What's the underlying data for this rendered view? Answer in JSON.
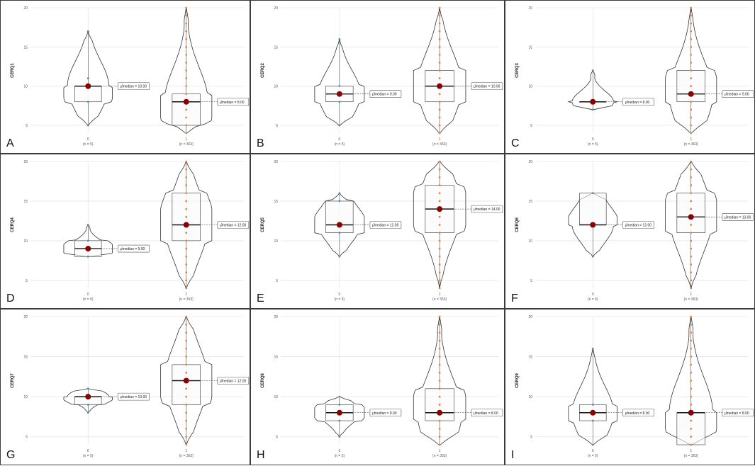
{
  "colors": {
    "mean_point": "#8b0000",
    "data_point": "#e8803a",
    "outline": "#333333",
    "grid": "#e6e6e6",
    "label_border": "#555555"
  },
  "chart_data": [
    {
      "panel": "A",
      "type": "violin",
      "ylabel": "CERQ1",
      "ylim": [
        4,
        20
      ],
      "yticks": [
        5,
        10,
        15,
        20
      ],
      "groups": [
        {
          "tick": "0",
          "n_label": "(n = 5)",
          "min": 5,
          "q1": 8,
          "median": 10,
          "q3": 10,
          "max": 17,
          "mean": 10,
          "label": "μ̂median = 10.00",
          "points": [
            5,
            8,
            10,
            11,
            17
          ]
        },
        {
          "tick": "1",
          "n_label": "(n = 363)",
          "min": 4,
          "q1": 5,
          "median": 8,
          "q3": 9,
          "max": 20,
          "mean": 8,
          "label": "μ̂median = 8.00",
          "points": [
            4,
            5,
            6,
            7,
            8,
            9,
            10,
            11,
            12,
            13,
            14,
            15,
            16,
            17,
            18,
            19,
            20
          ]
        }
      ]
    },
    {
      "panel": "B",
      "type": "violin",
      "ylabel": "CERQ2",
      "ylim": [
        4,
        20
      ],
      "yticks": [
        5,
        10,
        15,
        20
      ],
      "groups": [
        {
          "tick": "0",
          "n_label": "(n = 5)",
          "min": 5,
          "q1": 8,
          "median": 9,
          "q3": 10,
          "max": 16,
          "mean": 9,
          "label": "μ̂median = 9.00",
          "points": [
            5,
            8,
            9,
            10,
            16
          ]
        },
        {
          "tick": "1",
          "n_label": "(n = 363)",
          "min": 4,
          "q1": 8,
          "median": 10,
          "q3": 12,
          "max": 20,
          "mean": 10,
          "label": "μ̂median = 10.00",
          "points": [
            4,
            5,
            6,
            7,
            8,
            9,
            10,
            11,
            12,
            13,
            14,
            15,
            16,
            17,
            18,
            19,
            20
          ]
        }
      ]
    },
    {
      "panel": "C",
      "type": "violin",
      "ylabel": "CERQ3",
      "ylim": [
        4,
        20
      ],
      "yticks": [
        5,
        10,
        15,
        20
      ],
      "groups": [
        {
          "tick": "0",
          "n_label": "(n = 5)",
          "min": 7,
          "q1": 8,
          "median": 8,
          "q3": 8,
          "max": 12,
          "mean": 8,
          "label": "μ̂median = 8.00",
          "points": [
            7,
            8,
            8,
            8,
            12
          ]
        },
        {
          "tick": "1",
          "n_label": "(n = 363)",
          "min": 4,
          "q1": 8,
          "median": 9,
          "q3": 12,
          "max": 20,
          "mean": 9,
          "label": "μ̂median = 9.00",
          "points": [
            4,
            5,
            6,
            7,
            8,
            9,
            10,
            11,
            12,
            13,
            14,
            15,
            16,
            17,
            18,
            19,
            20
          ]
        }
      ]
    },
    {
      "panel": "D",
      "type": "violin",
      "ylabel": "CERQ4",
      "ylim": [
        4,
        20
      ],
      "yticks": [
        5,
        10,
        15,
        20
      ],
      "groups": [
        {
          "tick": "0",
          "n_label": "(n = 5)",
          "min": 8,
          "q1": 8,
          "median": 9,
          "q3": 10,
          "max": 12,
          "mean": 9,
          "label": "μ̂median = 9.00",
          "points": [
            8,
            8,
            9,
            10,
            12
          ]
        },
        {
          "tick": "1",
          "n_label": "(n = 363)",
          "min": 4,
          "q1": 10,
          "median": 12,
          "q3": 16,
          "max": 20,
          "mean": 12,
          "label": "μ̂median = 12.00",
          "points": [
            4,
            5,
            6,
            7,
            8,
            9,
            10,
            11,
            12,
            13,
            14,
            15,
            16,
            17,
            18,
            19,
            20
          ]
        }
      ]
    },
    {
      "panel": "E",
      "type": "violin",
      "ylabel": "CERQ5",
      "ylim": [
        4,
        20
      ],
      "yticks": [
        5,
        10,
        15,
        20
      ],
      "groups": [
        {
          "tick": "0",
          "n_label": "(n = 5)",
          "min": 8,
          "q1": 11,
          "median": 12,
          "q3": 15,
          "max": 16,
          "mean": 12,
          "label": "μ̂median = 12.00",
          "points": [
            8,
            11,
            12,
            15,
            16
          ]
        },
        {
          "tick": "1",
          "n_label": "(n = 363)",
          "min": 4,
          "q1": 11,
          "median": 14,
          "q3": 17,
          "max": 20,
          "mean": 14,
          "label": "μ̂median = 14.00",
          "points": [
            4,
            5,
            6,
            7,
            8,
            9,
            10,
            11,
            12,
            13,
            14,
            15,
            16,
            17,
            18,
            19,
            20
          ]
        }
      ]
    },
    {
      "panel": "F",
      "type": "violin",
      "ylabel": "CERQ6",
      "ylim": [
        4,
        20
      ],
      "yticks": [
        5,
        10,
        15,
        20
      ],
      "groups": [
        {
          "tick": "0",
          "n_label": "(n = 5)",
          "min": 8,
          "q1": 12,
          "median": 12,
          "q3": 16,
          "max": 16,
          "mean": 12,
          "label": "μ̂median = 12.00",
          "points": [
            8,
            12,
            12,
            16,
            16
          ]
        },
        {
          "tick": "1",
          "n_label": "(n = 363)",
          "min": 4,
          "q1": 11,
          "median": 13,
          "q3": 16,
          "max": 20,
          "mean": 13,
          "label": "μ̂median = 13.00",
          "points": [
            4,
            5,
            6,
            7,
            8,
            9,
            10,
            11,
            12,
            13,
            14,
            15,
            16,
            17,
            18,
            19,
            20
          ]
        }
      ]
    },
    {
      "panel": "G",
      "type": "violin",
      "ylabel": "CERQ7",
      "ylim": [
        4,
        20
      ],
      "yticks": [
        5,
        10,
        15,
        20
      ],
      "groups": [
        {
          "tick": "0",
          "n_label": "(n = 5)",
          "min": 8,
          "q1": 9,
          "median": 10,
          "q3": 10,
          "max": 11,
          "mean": 10,
          "label": "μ̂median = 10.00",
          "points": [
            8,
            9,
            10,
            10,
            11
          ]
        },
        {
          "tick": "1",
          "n_label": "(n = 363)",
          "min": 4,
          "q1": 9,
          "median": 12,
          "q3": 14,
          "max": 20,
          "mean": 12,
          "label": "μ̂median = 12.00",
          "points": [
            4,
            5,
            6,
            7,
            8,
            9,
            10,
            11,
            12,
            13,
            14,
            15,
            16,
            17,
            18,
            19,
            20
          ]
        }
      ]
    },
    {
      "panel": "H",
      "type": "violin",
      "ylabel": "CERQ8",
      "ylim": [
        4,
        20
      ],
      "yticks": [
        5,
        10,
        15,
        20
      ],
      "groups": [
        {
          "tick": "0",
          "n_label": "(n = 5)",
          "min": 5,
          "q1": 7,
          "median": 8,
          "q3": 9,
          "max": 10,
          "mean": 8,
          "label": "μ̂median = 8.00",
          "points": [
            5,
            7,
            8,
            9,
            10
          ]
        },
        {
          "tick": "1",
          "n_label": "(n = 363)",
          "min": 4,
          "q1": 7,
          "median": 8,
          "q3": 11,
          "max": 20,
          "mean": 8,
          "label": "μ̂median = 8.00",
          "points": [
            4,
            5,
            6,
            7,
            8,
            9,
            10,
            11,
            12,
            13,
            14,
            15,
            16,
            17,
            18,
            19,
            20
          ]
        }
      ]
    },
    {
      "panel": "I",
      "type": "violin",
      "ylabel": "CERQ9",
      "ylim": [
        4,
        20
      ],
      "yticks": [
        5,
        10,
        15,
        20
      ],
      "groups": [
        {
          "tick": "0",
          "n_label": "(n = 5)",
          "min": 4,
          "q1": 7,
          "median": 8,
          "q3": 9,
          "max": 16,
          "mean": 8,
          "label": "μ̂median = 8.00",
          "points": [
            4,
            7,
            8,
            9,
            16
          ]
        },
        {
          "tick": "1",
          "n_label": "(n = 363)",
          "min": 4,
          "q1": 4,
          "median": 8,
          "q3": 8,
          "max": 20,
          "mean": 8,
          "label": "μ̂median = 8.00",
          "points": [
            4,
            5,
            6,
            7,
            8,
            9,
            10,
            11,
            12,
            13,
            14,
            15,
            16,
            17,
            18,
            19,
            20
          ]
        }
      ]
    }
  ]
}
